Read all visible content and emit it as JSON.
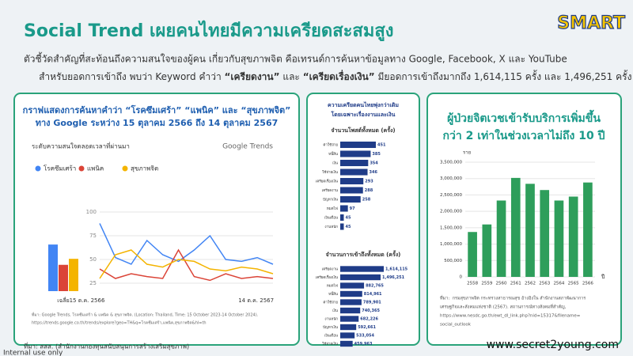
{
  "header": {
    "logo": "SMART",
    "title": "Social Trend เผยคนไทยมีความเครียดสะสมสูง",
    "subtitle_line1": "ตัวชี้วัดสำคัญที่สะท้อนถึงความสนใจของผู้คน เกี่ยวกับสุขภาพจิต คือเทรนด์การค้นหาข้อมูลทาง Google, Facebook, X และ YouTube",
    "subtitle_line2": [
      "สำหรับยอดการเข้าถึง พบว่า Keyword คำว่า ",
      "“เครียดงาน”",
      " และ ",
      "“เครียดเรื่องเงิน”",
      " มียอดการเข้าถึงมากถึง 1,614,115 ครั้ง และ 1,496,251 ครั้ง"
    ]
  },
  "chart_data": [
    {
      "type": "line",
      "title": [
        "กราฟแสดงการค้นหาคำว่า “โรคซึมเศร้า” “แพนิค” และ “สุขภาพจิต”",
        "ทาง Google ระหว่าง 15 ตุลาคม 2566 ถึง 14 ตุลาคม 2567"
      ],
      "subtitle": "ระดับความสนใจตลอดเวลาที่ผ่านมา",
      "brand": "Google Trends",
      "average_label": "เฉลี่ย",
      "categories": [
        "15 ต.ค. 2566",
        null,
        null,
        null,
        null,
        null,
        null,
        null,
        null,
        null,
        "14 ต.ค. 2567",
        null
      ],
      "series": [
        {
          "name": "โรคซึมเศร้า",
          "color": "#4285f4",
          "values": [
            88,
            52,
            45,
            70,
            55,
            48,
            60,
            75,
            50,
            48,
            52,
            45
          ],
          "average": 62
        },
        {
          "name": "แพนิค",
          "color": "#db4437",
          "values": [
            40,
            30,
            35,
            32,
            30,
            60,
            32,
            28,
            35,
            30,
            32,
            30
          ],
          "average": 35
        },
        {
          "name": "สุขภาพจิต",
          "color": "#f4b400",
          "values": [
            30,
            55,
            60,
            45,
            42,
            50,
            48,
            40,
            38,
            42,
            40,
            35
          ],
          "average": 43
        }
      ],
      "ylim": [
        15,
        105
      ],
      "yticks": [
        25,
        50,
        75,
        100
      ],
      "grid": true,
      "notes": [
        "ที่มา: Google Trends, โรคซึมเศร้า & แพนิค & สุขภาพจิต. (Location: Thailand, Time: 15 October 2023-14 October 2024).",
        "https://trends.google.co.th/trends/explore?geo=TH&q=โรคซึมเศร้า,แพนิค,สุขภาพจิต&hl=th"
      ]
    },
    {
      "type": "hbar",
      "panel_title": [
        "ความเครียดคนไทยพุ่งกว่าเดิม",
        "โดยเฉพาะเรื่องงานและเงิน"
      ],
      "title": "จำนวนโพสต์ทั้งหมด (ครั้ง)",
      "color": "#1f3c88",
      "categories": [
        "ค่าใช้จ่าย",
        "หนี้สิน",
        "เงิน",
        "ใช้จ่ายเงิน",
        "เครียดเรื่องเงิน",
        "เครียดงาน",
        "ปัญหาเงิน",
        "หมดไฟ",
        "เงินเดือน",
        "งานหนัก"
      ],
      "values": [
        451,
        385,
        354,
        346,
        293,
        288,
        258,
        97,
        45,
        45
      ]
    },
    {
      "type": "hbar",
      "title": "จำนวนการเข้าถึงทั้งหมด (ครั้ง)",
      "color": "#1f3c88",
      "categories": [
        "เครียดงาน",
        "เครียดเรื่องเงิน",
        "หมดไฟ",
        "หนี้สิน",
        "ค่าใช้จ่าย",
        "เงิน",
        "งานหนัก",
        "ปัญหาเงิน",
        "เงินเดือน",
        "ใช้จ่ายเงิน"
      ],
      "values": [
        1614115,
        1496251,
        882765,
        814961,
        789901,
        740365,
        682226,
        592661,
        533054,
        459963
      ],
      "value_labels": [
        "1,614,115",
        "1,496,251",
        "882,765",
        "814,961",
        "789,901",
        "740,365",
        "682,226",
        "592,661",
        "533,054",
        "459,963"
      ]
    },
    {
      "type": "bar",
      "title": [
        "ผู้ป่วยจิตเวชเข้ารับบริการเพิ่มขึ้น",
        "กว่า 2 เท่าในช่วงเวลาไม่ถึง 10 ปี"
      ],
      "y_label": "ราย",
      "x_label": "ปี",
      "color": "#2e9e5b",
      "categories": [
        "2558",
        "2559",
        "2560",
        "2561",
        "2562",
        "2563",
        "2564",
        "2565",
        "2566"
      ],
      "values": [
        1370000,
        1600000,
        2330000,
        3020000,
        2840000,
        2650000,
        2330000,
        2450000,
        2880000
      ],
      "ylim": [
        0,
        3500000
      ],
      "yticks": [
        0,
        {
          "value": 500000,
          "label": "500,000"
        },
        {
          "value": 1000000,
          "label": "1,000,000"
        },
        {
          "value": 1500000,
          "label": "1,500,000"
        },
        {
          "value": 2000000,
          "label": "2,000,000"
        },
        {
          "value": 2500000,
          "label": "2,500,000"
        },
        {
          "value": 3000000,
          "label": "3,000,000"
        },
        {
          "value": 3500000,
          "label": "3,500,000"
        }
      ],
      "grid": true,
      "notes": [
        "ที่มา:  กรมสุขภาพจิต กระทรวงสาธารณสุข อ้างอิงใน สำนักงานสภาพัฒนาการ",
        "เศรษฐกิจและสังคมแห่งชาติ (2567). สถานการณ์ทางสังคมที่สำคัญ,",
        "https://www.nesdc.go.th/ewt_dl_link.php?nid=15317&filename=",
        "social_outlook"
      ]
    }
  ],
  "footer": {
    "source": "ที่มา: สสส. (สำนักงานกองทุนสนับสนุนการสร้างเสริมสุขภาพ)",
    "website": "www.secret2young.com",
    "label": "Internal use only"
  }
}
